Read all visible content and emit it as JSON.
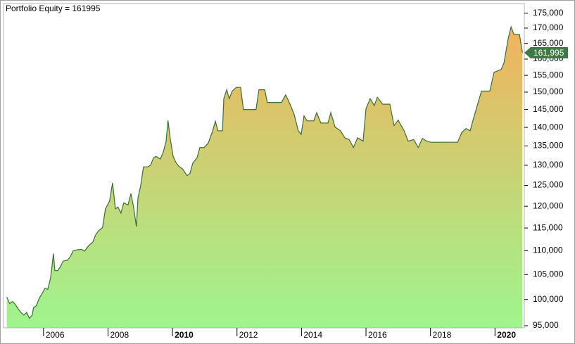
{
  "chart_data": {
    "type": "area",
    "title": "Portfolio Equity = 161995",
    "log_scale": true,
    "color": "#3b6e34",
    "fill_gradient": [
      "#f2b25c",
      "#9ef58e"
    ],
    "xlim": [
      2004.76,
      2020.91
    ],
    "xticks": [
      2006,
      2008,
      2010,
      2012,
      2014,
      2016,
      2018,
      2020
    ],
    "ylim": [
      94610,
      178370
    ],
    "yticks": [
      {
        "value": 95000,
        "label": "95,000"
      },
      {
        "value": 100000,
        "label": "100,000"
      },
      {
        "value": 105000,
        "label": "105,000"
      },
      {
        "value": 110000,
        "label": "110,000"
      },
      {
        "value": 115000,
        "label": "115,000"
      },
      {
        "value": 120000,
        "label": "120,000"
      },
      {
        "value": 125000,
        "label": "125,000"
      },
      {
        "value": 130000,
        "label": "130,000"
      },
      {
        "value": 135000,
        "label": "135,000"
      },
      {
        "value": 140000,
        "label": "140,000"
      },
      {
        "value": 145000,
        "label": "145,000"
      },
      {
        "value": 150000,
        "label": "150,000"
      },
      {
        "value": 155000,
        "label": "155,000"
      },
      {
        "value": 160000,
        "label": "160,000"
      },
      {
        "value": 165000,
        "label": "165,000"
      },
      {
        "value": 170000,
        "label": "170,000"
      },
      {
        "value": 175000,
        "label": "175,000"
      }
    ],
    "last_value": {
      "value": 161995,
      "label": "161,995"
    },
    "x": [
      2004.86,
      2004.95,
      2005.04,
      2005.13,
      2005.21,
      2005.3,
      2005.39,
      2005.48,
      2005.56,
      2005.65,
      2005.69,
      2005.78,
      2005.87,
      2005.96,
      2006.04,
      2006.13,
      2006.22,
      2006.31,
      2006.35,
      2006.44,
      2006.52,
      2006.61,
      2006.74,
      2006.83,
      2006.92,
      2007.05,
      2007.18,
      2007.27,
      2007.4,
      2007.53,
      2007.62,
      2007.7,
      2007.83,
      2007.92,
      2008.05,
      2008.14,
      2008.23,
      2008.31,
      2008.4,
      2008.49,
      2008.62,
      2008.71,
      2008.79,
      2008.88,
      2008.93,
      2009.01,
      2009.1,
      2009.23,
      2009.32,
      2009.41,
      2009.49,
      2009.62,
      2009.71,
      2009.8,
      2009.86,
      2009.93,
      2010.02,
      2010.1,
      2010.19,
      2010.32,
      2010.45,
      2010.54,
      2010.63,
      2010.76,
      2010.85,
      2010.98,
      2011.11,
      2011.24,
      2011.33,
      2011.41,
      2011.55,
      2011.59,
      2011.68,
      2011.76,
      2011.85,
      2011.98,
      2012.11,
      2012.2,
      2012.59,
      2012.68,
      2012.86,
      2012.94,
      2013.38,
      2013.51,
      2013.64,
      2013.77,
      2013.9,
      2013.99,
      2014.08,
      2014.17,
      2014.38,
      2014.47,
      2014.6,
      2014.82,
      2014.91,
      2015.04,
      2015.21,
      2015.34,
      2015.48,
      2015.61,
      2015.74,
      2015.91,
      2016.0,
      2016.13,
      2016.26,
      2016.35,
      2016.52,
      2016.74,
      2016.87,
      2017.0,
      2017.18,
      2017.31,
      2017.48,
      2017.62,
      2017.75,
      2017.88,
      2018.01,
      2018.1,
      2018.84,
      2018.97,
      2019.1,
      2019.23,
      2019.32,
      2019.45,
      2019.58,
      2019.84,
      2019.97,
      2020.19,
      2020.28,
      2020.41,
      2020.5,
      2020.59,
      2020.76,
      2020.85
    ],
    "values": [
      100500,
      99200,
      99600,
      99000,
      98200,
      97500,
      97000,
      97500,
      96400,
      97000,
      98400,
      98800,
      100300,
      101200,
      102200,
      102000,
      104300,
      109400,
      105800,
      105800,
      106600,
      107800,
      108000,
      108700,
      110000,
      110200,
      110300,
      109900,
      111100,
      111900,
      113500,
      114300,
      115100,
      119400,
      121200,
      125600,
      119400,
      119800,
      118400,
      120800,
      120300,
      123000,
      119900,
      115300,
      122100,
      124700,
      129600,
      129600,
      130000,
      131900,
      132300,
      131600,
      133300,
      136100,
      141900,
      136900,
      132300,
      130800,
      129800,
      129000,
      127400,
      127900,
      130600,
      131900,
      134600,
      134600,
      135800,
      138900,
      141700,
      139100,
      139100,
      148100,
      150700,
      148100,
      150300,
      151400,
      151400,
      145000,
      145000,
      150700,
      150700,
      147000,
      147000,
      149200,
      146600,
      143700,
      139100,
      138100,
      143200,
      141800,
      141800,
      144100,
      141200,
      141200,
      144100,
      140100,
      139100,
      137200,
      136700,
      134600,
      137200,
      136300,
      145200,
      148100,
      146100,
      148500,
      146500,
      146500,
      140500,
      142000,
      139100,
      136300,
      136700,
      134600,
      137000,
      136300,
      136000,
      136000,
      136000,
      138600,
      139700,
      139100,
      142000,
      146100,
      150300,
      150300,
      155900,
      156800,
      158800,
      166600,
      170400,
      167900,
      167900,
      161995
    ]
  }
}
